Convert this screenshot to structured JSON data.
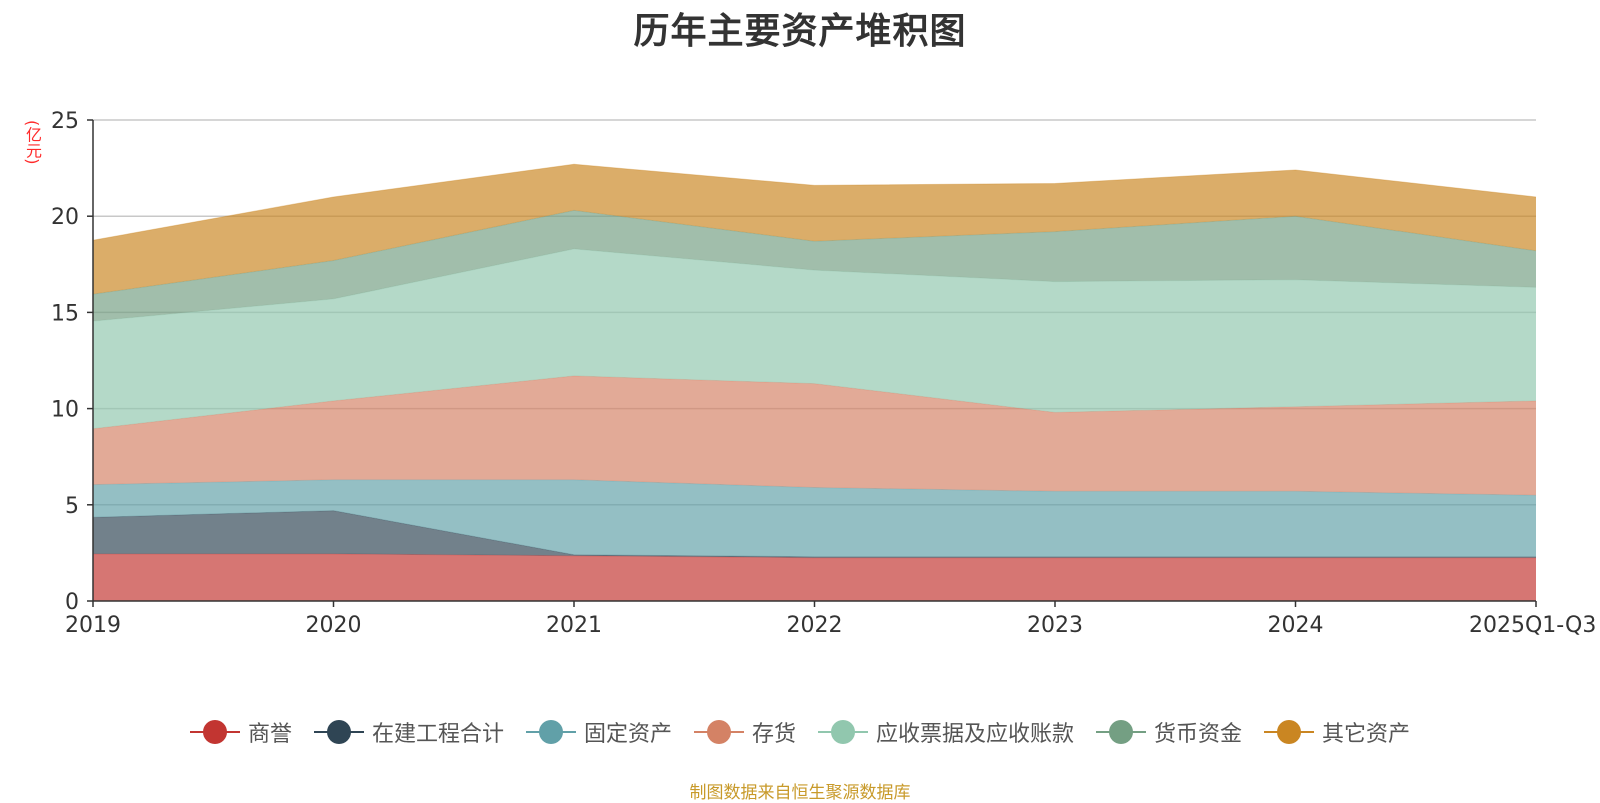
{
  "chart_data": {
    "type": "area",
    "stacked": true,
    "title": "历年主要资产堆积图",
    "ylabel": "(亿元)",
    "xlabel": "",
    "ylim": [
      0,
      25
    ],
    "yticks": [
      0,
      5,
      10,
      15,
      20,
      25
    ],
    "grid": true,
    "legend_position": "bottom",
    "categories": [
      "2019",
      "2020",
      "2021",
      "2022",
      "2023",
      "2024",
      "2025Q1-Q3"
    ],
    "series": [
      {
        "name": "商誉",
        "color": "#c23531",
        "values": [
          2.45,
          2.45,
          2.35,
          2.25,
          2.25,
          2.25,
          2.25
        ]
      },
      {
        "name": "在建工程合计",
        "color": "#2f4554",
        "values": [
          1.9,
          2.25,
          0.05,
          0.05,
          0.05,
          0.05,
          0.05
        ]
      },
      {
        "name": "固定资产",
        "color": "#61a0a8",
        "values": [
          1.7,
          1.6,
          3.9,
          3.6,
          3.4,
          3.4,
          3.2
        ]
      },
      {
        "name": "存货",
        "color": "#d48265",
        "values": [
          2.9,
          4.1,
          5.4,
          5.4,
          4.1,
          4.4,
          4.9
        ]
      },
      {
        "name": "应收票据及应收账款",
        "color": "#91c7ae",
        "values": [
          5.6,
          5.3,
          6.6,
          5.9,
          6.8,
          6.6,
          5.9
        ]
      },
      {
        "name": "货币资金",
        "color": "#749f83",
        "values": [
          1.4,
          2.0,
          2.0,
          1.5,
          2.6,
          3.3,
          1.9
        ]
      },
      {
        "name": "其它资产",
        "color": "#ca8622",
        "values": [
          2.8,
          3.3,
          2.4,
          2.9,
          2.5,
          2.4,
          2.8
        ]
      }
    ]
  },
  "footer": {
    "source": "制图数据来自恒生聚源数据库"
  }
}
